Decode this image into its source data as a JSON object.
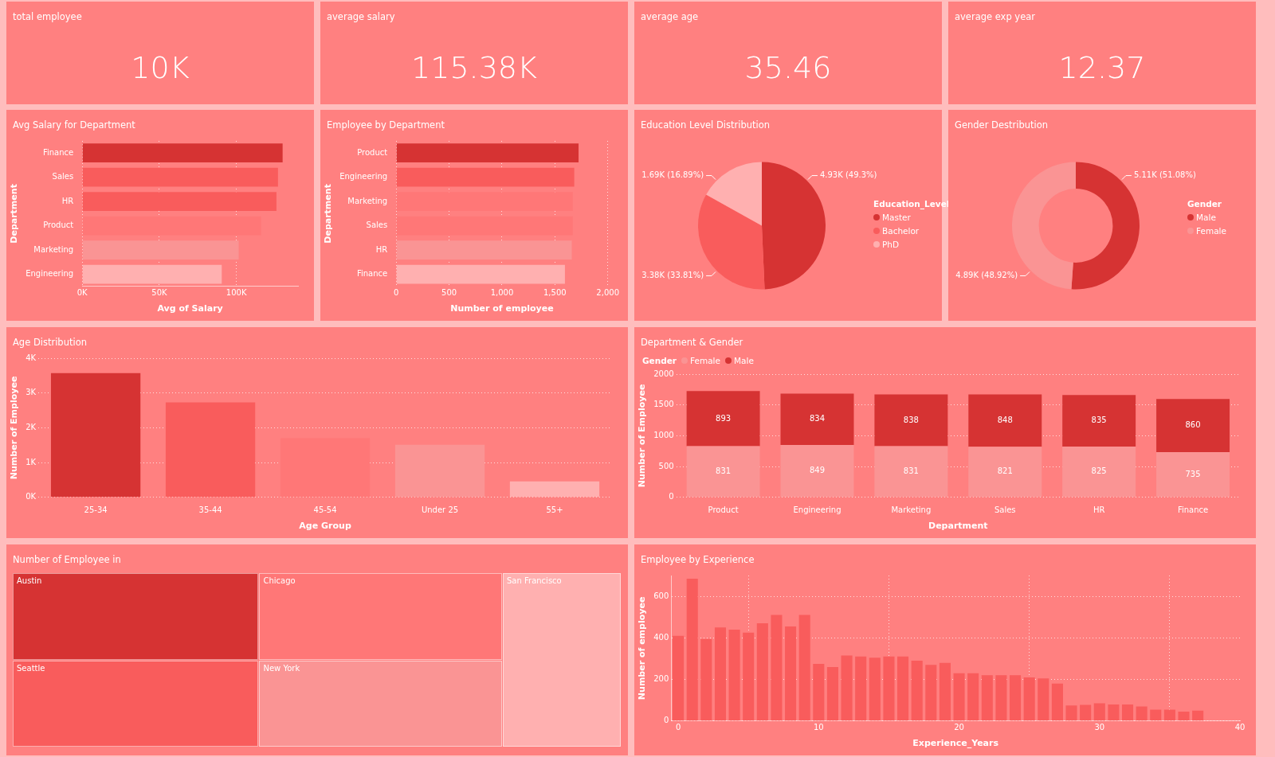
{
  "chart_data": [
    {
      "type": "other",
      "title": "total employee",
      "annotations": [
        "10K"
      ]
    },
    {
      "type": "other",
      "title": "average salary",
      "annotations": [
        "115.38K"
      ]
    },
    {
      "type": "other",
      "title": "average age",
      "annotations": [
        "35.46"
      ]
    },
    {
      "type": "other",
      "title": "average exp year",
      "annotations": [
        "12.37"
      ]
    },
    {
      "type": "bar",
      "orientation": "horizontal",
      "title": "Avg Salary for Department",
      "xlabel": "Avg of Salary",
      "ylabel": "Department",
      "categories": [
        "Finance",
        "Sales",
        "HR",
        "Product",
        "Marketing",
        "Engineering"
      ],
      "values": [
        130000,
        127000,
        126000,
        116000,
        101500,
        90500
      ],
      "colors": [
        "#d63333",
        "#f95c5c",
        "#f95c5c",
        "#ff7777",
        "#fa9494",
        "#ffb0b0"
      ],
      "xlim": [
        0,
        140000
      ],
      "xticks": [
        {
          "value": 0,
          "label": "0K"
        },
        {
          "value": 50000,
          "label": "50K"
        },
        {
          "value": 100000,
          "label": "100K"
        }
      ],
      "grid": "x"
    },
    {
      "type": "bar",
      "orientation": "horizontal",
      "title": "Employee by Department",
      "xlabel": "Number of employee",
      "ylabel": "Department",
      "categories": [
        "Product",
        "Engineering",
        "Marketing",
        "Sales",
        "HR",
        "Finance"
      ],
      "values": [
        1724,
        1683,
        1669,
        1669,
        1660,
        1595
      ],
      "colors": [
        "#d63333",
        "#f95c5c",
        "#ff7777",
        "#ff7777",
        "#fa9494",
        "#ffb0b0"
      ],
      "xlim": [
        0,
        2000
      ],
      "xticks": [
        0,
        500,
        {
          "value": 1000,
          "label": "1,000"
        },
        {
          "value": 1500,
          "label": "1,500"
        },
        {
          "value": 2000,
          "label": "2,000"
        }
      ],
      "grid": "x"
    },
    {
      "type": "pie",
      "title": "Education Level Distribution",
      "legend_title": "Education_Level",
      "legend": "right",
      "categories": [
        "Master",
        "Bachelor",
        "PhD"
      ],
      "values": [
        4930,
        3380,
        1690
      ],
      "value_labels": [
        "4.93K (49.3%)",
        "3.38K (33.81%)",
        "1.69K (16.89%)"
      ],
      "colors": [
        "#d63333",
        "#f95c5c",
        "#ffb0b0"
      ]
    },
    {
      "type": "donut",
      "title": "Gender Destribution",
      "legend_title": "Gender",
      "legend": "right",
      "categories": [
        "Male",
        "Female"
      ],
      "values": [
        5110,
        4890
      ],
      "value_labels": [
        "5.11K (51.08%)",
        "4.89K (48.92%)"
      ],
      "colors": [
        "#d63333",
        "#fa9494"
      ]
    },
    {
      "type": "bar",
      "title": "Age Distribution",
      "xlabel": "Age Group",
      "ylabel": "Number of Employee",
      "categories": [
        "25-34",
        "35-44",
        "45-54",
        "Under 25",
        "55+"
      ],
      "values": [
        3570,
        2730,
        1700,
        1510,
        460
      ],
      "colors": [
        "#d63333",
        "#f95c5c",
        "#ff7777",
        "#fa9494",
        "#ffb0b0"
      ],
      "ylim": [
        0,
        4000
      ],
      "yticks": [
        {
          "value": 0,
          "label": "0K"
        },
        {
          "value": 1000,
          "label": "1K"
        },
        {
          "value": 2000,
          "label": "2K"
        },
        {
          "value": 3000,
          "label": "3K"
        },
        {
          "value": 4000,
          "label": "4K"
        }
      ],
      "grid": "y"
    },
    {
      "type": "bar",
      "stacked": true,
      "title": "Department & Gender",
      "xlabel": "Department",
      "ylabel": "Number of Employee",
      "legend_title": "Gender",
      "legend": "top left",
      "data_labels": true,
      "categories": [
        "Product",
        "Engineering",
        "Marketing",
        "Sales",
        "HR",
        "Finance"
      ],
      "series": [
        {
          "name": "Female",
          "color": "#fa9494",
          "values": [
            831,
            849,
            831,
            821,
            825,
            735
          ]
        },
        {
          "name": "Male",
          "color": "#d63333",
          "values": [
            893,
            834,
            838,
            848,
            835,
            860
          ]
        }
      ],
      "ylim": [
        0,
        2000
      ],
      "yticks": [
        0,
        500,
        1000,
        1500,
        2000
      ],
      "grid": "y"
    },
    {
      "type": "other",
      "title": "Number of Employee in",
      "categories": [
        "Austin",
        "Chicago",
        "San Francisco",
        "Seattle",
        "New York"
      ],
      "colors": [
        "#d63333",
        "#ff7777",
        "#ffb0b0",
        "#f95c5c",
        "#fa9494"
      ]
    },
    {
      "type": "bar",
      "title": "Employee by Experience",
      "xlabel": "Experience_Years",
      "ylabel": "Number of employee",
      "color": "#f95c5c",
      "x": [
        0,
        1,
        2,
        3,
        4,
        5,
        6,
        7,
        8,
        9,
        10,
        11,
        12,
        13,
        14,
        15,
        16,
        17,
        18,
        19,
        20,
        21,
        22,
        23,
        24,
        25,
        26,
        27,
        28,
        29,
        30,
        31,
        32,
        33,
        34,
        35,
        36,
        37
      ],
      "values": [
        410,
        685,
        395,
        450,
        440,
        425,
        470,
        510,
        455,
        510,
        275,
        260,
        315,
        310,
        305,
        310,
        310,
        290,
        270,
        280,
        230,
        230,
        220,
        220,
        220,
        210,
        205,
        180,
        75,
        78,
        85,
        80,
        80,
        70,
        55,
        55,
        45,
        50
      ],
      "xlim": [
        -0.5,
        40
      ],
      "xticks": [
        0,
        10,
        20,
        30,
        40
      ],
      "ylim": [
        0,
        700
      ],
      "yticks": [
        0,
        200,
        400,
        600
      ],
      "grid": true
    }
  ]
}
